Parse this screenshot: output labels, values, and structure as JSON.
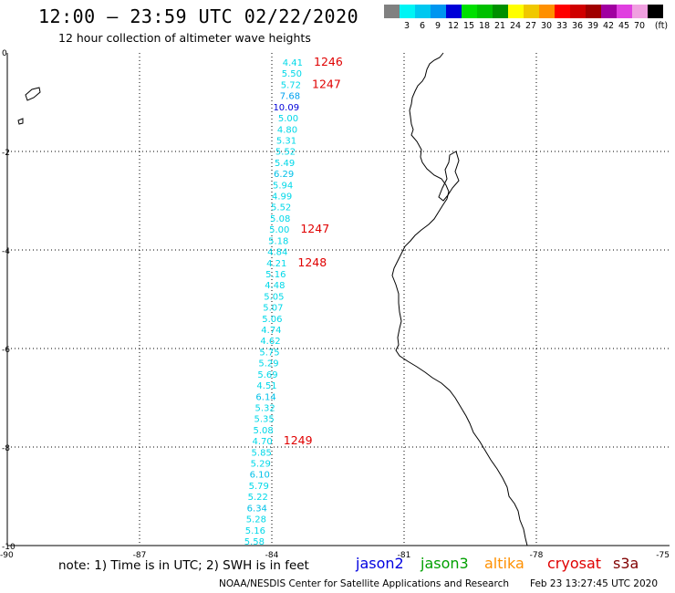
{
  "header": {
    "title": "12:00 – 23:59 UTC 02/22/2020",
    "subtitle": "12 hour collection of altimeter wave heights"
  },
  "color_scale": {
    "unit_label": "(ft)",
    "swatches": [
      {
        "color": "#808080",
        "label": ""
      },
      {
        "color": "#00f5f5",
        "label": "3"
      },
      {
        "color": "#00c8f0",
        "label": "6"
      },
      {
        "color": "#0096f0",
        "label": "9"
      },
      {
        "color": "#0000d8",
        "label": "12"
      },
      {
        "color": "#00e000",
        "label": "15"
      },
      {
        "color": "#00c000",
        "label": "18"
      },
      {
        "color": "#009000",
        "label": "21"
      },
      {
        "color": "#ffff00",
        "label": "24"
      },
      {
        "color": "#f0c800",
        "label": "27"
      },
      {
        "color": "#ff9000",
        "label": "30"
      },
      {
        "color": "#ff0000",
        "label": "33"
      },
      {
        "color": "#d00000",
        "label": "36"
      },
      {
        "color": "#a00000",
        "label": "39"
      },
      {
        "color": "#a000a0",
        "label": "42"
      },
      {
        "color": "#e040e0",
        "label": "45"
      },
      {
        "color": "#f0a0e0",
        "label": "70"
      },
      {
        "color": "#000000",
        "label": ""
      }
    ]
  },
  "axes": {
    "x_ticks": [
      "-90",
      "-87",
      "-84",
      "-81",
      "-78",
      "-75"
    ],
    "y_ticks": [
      "0",
      "-2",
      "-4",
      "-6",
      "-8",
      "-10"
    ]
  },
  "wave_readings": [
    {
      "value": "4.41",
      "color": "#00d8e8"
    },
    {
      "value": "5.50",
      "color": "#00d8e8"
    },
    {
      "value": "5.72",
      "color": "#00d8e8"
    },
    {
      "value": "7.68",
      "color": "#00a0f0"
    },
    {
      "value": "10.09",
      "color": "#0000d8"
    },
    {
      "value": "5.00",
      "color": "#00d8e8"
    },
    {
      "value": "4.80",
      "color": "#00d8e8"
    },
    {
      "value": "5.31",
      "color": "#00d8e8"
    },
    {
      "value": "5.52",
      "color": "#00d8e8"
    },
    {
      "value": "5.49",
      "color": "#00d8e8"
    },
    {
      "value": "6.29",
      "color": "#00c0e8"
    },
    {
      "value": "5.94",
      "color": "#00d8e8"
    },
    {
      "value": "4.99",
      "color": "#00d8e8"
    },
    {
      "value": "5.52",
      "color": "#00d8e8"
    },
    {
      "value": "5.08",
      "color": "#00d8e8"
    },
    {
      "value": "5.00",
      "color": "#00d8e8"
    },
    {
      "value": "5.18",
      "color": "#00d8e8"
    },
    {
      "value": "4.84",
      "color": "#00d8e8"
    },
    {
      "value": "4.21",
      "color": "#00d8e8"
    },
    {
      "value": "5.16",
      "color": "#00d8e8"
    },
    {
      "value": "4.48",
      "color": "#00d8e8"
    },
    {
      "value": "5.05",
      "color": "#00d8e8"
    },
    {
      "value": "5.07",
      "color": "#00d8e8"
    },
    {
      "value": "5.06",
      "color": "#00d8e8"
    },
    {
      "value": "4.74",
      "color": "#00d8e8"
    },
    {
      "value": "4.62",
      "color": "#00d8e8"
    },
    {
      "value": "5.75",
      "color": "#00d8e8"
    },
    {
      "value": "5.29",
      "color": "#00d8e8"
    },
    {
      "value": "5.69",
      "color": "#00d8e8"
    },
    {
      "value": "4.51",
      "color": "#00d8e8"
    },
    {
      "value": "6.14",
      "color": "#00c0e8"
    },
    {
      "value": "5.32",
      "color": "#00d8e8"
    },
    {
      "value": "5.35",
      "color": "#00d8e8"
    },
    {
      "value": "5.08",
      "color": "#00d8e8"
    },
    {
      "value": "4.70",
      "color": "#00d8e8"
    },
    {
      "value": "5.85",
      "color": "#00d8e8"
    },
    {
      "value": "5.29",
      "color": "#00d8e8"
    },
    {
      "value": "6.10",
      "color": "#00c0e8"
    },
    {
      "value": "5.79",
      "color": "#00d8e8"
    },
    {
      "value": "5.22",
      "color": "#00d8e8"
    },
    {
      "value": "6.34",
      "color": "#00c0e8"
    },
    {
      "value": "5.28",
      "color": "#00d8e8"
    },
    {
      "value": "5.16",
      "color": "#00d8e8"
    },
    {
      "value": "5.58",
      "color": "#00d8e8"
    }
  ],
  "time_labels": [
    {
      "text": "1246",
      "row": 0
    },
    {
      "text": "1247",
      "row": 2
    },
    {
      "text": "1247",
      "row": 15
    },
    {
      "text": "1248",
      "row": 18
    },
    {
      "text": "1249",
      "row": 34
    }
  ],
  "time_label_color": "#e00000",
  "notes": {
    "text": "note:  1) Time is in UTC;  2) SWH is in feet"
  },
  "missions": [
    {
      "name": "jason2",
      "color": "#0000e0"
    },
    {
      "name": "jason3",
      "color": "#00a000"
    },
    {
      "name": "altika",
      "color": "#ff9000"
    },
    {
      "name": "cryosat",
      "color": "#e00000"
    },
    {
      "name": "s3a",
      "color": "#800000"
    }
  ],
  "footer": {
    "credit": "NOAA/NESDIS Center for Satellite Applications and Research",
    "timestamp": "Feb 23 13:27:45 UTC 2020"
  }
}
